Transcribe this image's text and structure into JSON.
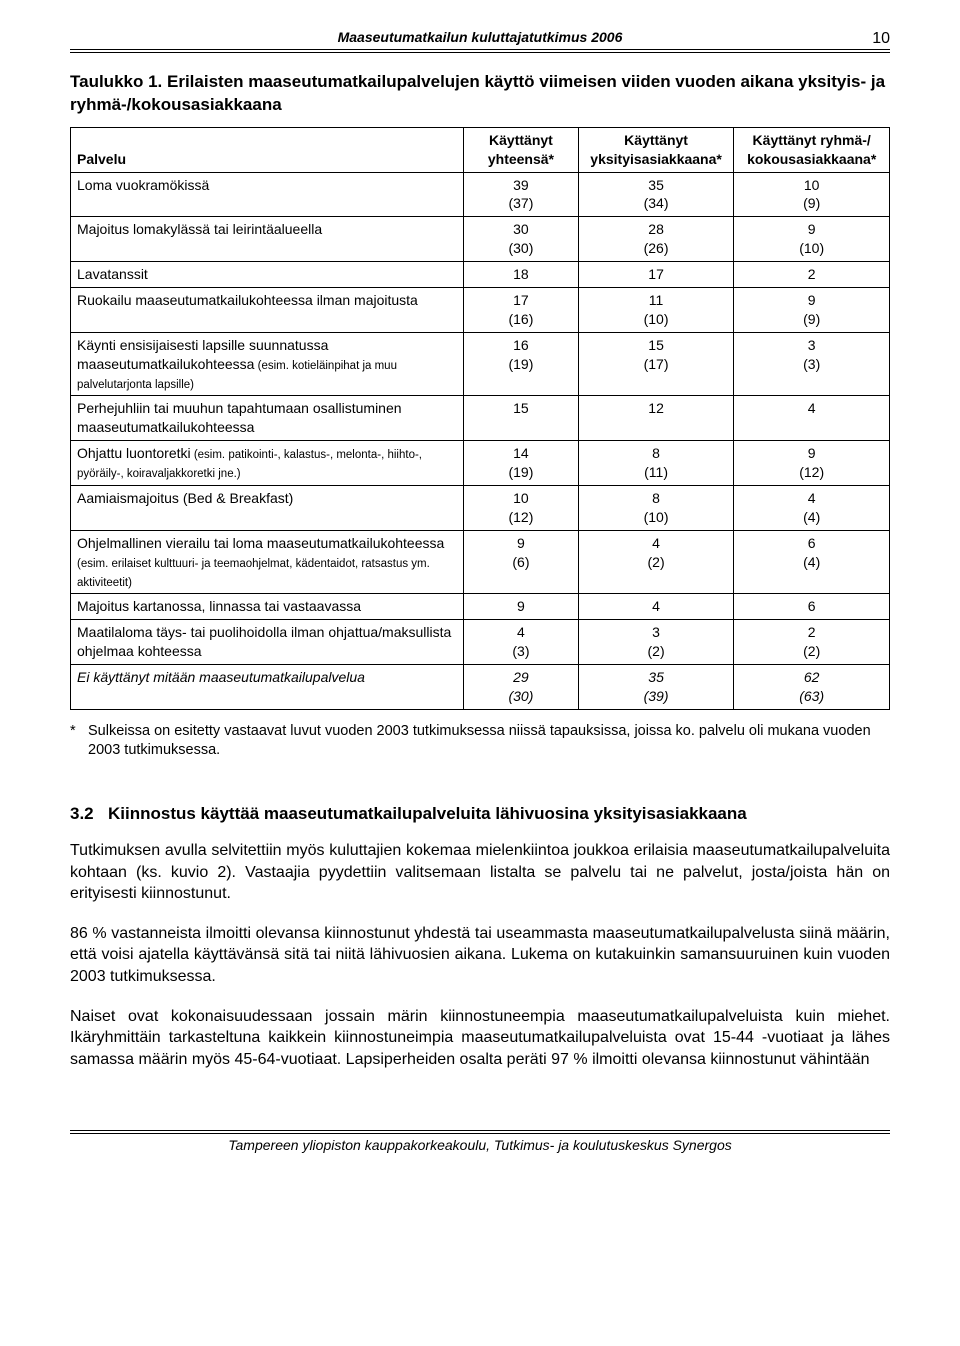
{
  "header": {
    "running_title": "Maaseutumatkailun kuluttajatutkimus 2006",
    "page_number": "10"
  },
  "table": {
    "caption_label": "Taulukko 1.",
    "caption_text": "Erilaisten maaseutumatkailupalvelujen käyttö viimeisen viiden vuoden aikana yksityis- ja ryhmä-/kokousasiakkaana",
    "columns": {
      "c0": "Palvelu",
      "c1": "Käyttänyt yhteensä*",
      "c2": "Käyttänyt yksityisasiakkaana*",
      "c3": "Käyttänyt ryhmä-/ kokousasiakkaana*"
    },
    "rows": [
      {
        "label_main": "Loma vuokramökissä",
        "label_small": "",
        "c1": "39\n(37)",
        "c2": "35\n(34)",
        "c3": "10\n(9)"
      },
      {
        "label_main": "Majoitus lomakylässä tai leirintäalueella",
        "label_small": "",
        "c1": "30\n(30)",
        "c2": "28\n(26)",
        "c3": "9\n(10)"
      },
      {
        "label_main": "Lavatanssit",
        "label_small": "",
        "c1": "18",
        "c2": "17",
        "c3": "2"
      },
      {
        "label_main": "Ruokailu maaseutumatkailukohteessa ilman majoitusta",
        "label_small": "",
        "c1": "17\n(16)",
        "c2": "11\n(10)",
        "c3": "9\n(9)"
      },
      {
        "label_main": "Käynti ensisijaisesti lapsille suunnatussa maaseutumatkailukohteessa",
        "label_small": " (esim. kotieläinpihat ja muu palvelutarjonta lapsille)",
        "c1": "16\n(19)",
        "c2": "15\n(17)",
        "c3": "3\n(3)"
      },
      {
        "label_main": "Perhejuhliin tai muuhun tapahtumaan osallistuminen maaseutumatkailukohteessa",
        "label_small": "",
        "c1": "15",
        "c2": "12",
        "c3": "4"
      },
      {
        "label_main": "Ohjattu luontoretki",
        "label_small": " (esim. patikointi-, kalastus-, melonta-, hiihto-, pyöräily-, koiravaljakkoretki jne.)",
        "c1": "14\n(19)",
        "c2": "8\n(11)",
        "c3": "9\n(12)"
      },
      {
        "label_main": "Aamiaismajoitus (Bed & Breakfast)",
        "label_small": "",
        "c1": "10\n(12)",
        "c2": "8\n(10)",
        "c3": "4\n(4)"
      },
      {
        "label_main": "Ohjelmallinen vierailu tai loma maaseutumatkailukohteessa",
        "label_small": " (esim. erilaiset kulttuuri- ja teemaohjelmat, kädentaidot, ratsastus ym. aktiviteetit)",
        "c1": "9\n(6)",
        "c2": "4\n(2)",
        "c3": "6\n(4)"
      },
      {
        "label_main": "Majoitus kartanossa, linnassa tai vastaavassa",
        "label_small": "",
        "c1": "9",
        "c2": "4",
        "c3": "6"
      },
      {
        "label_main": "Maatilaloma täys- tai puolihoidolla ilman ohjattua/maksullista ohjelmaa kohteessa",
        "label_small": "",
        "c1": "4\n(3)",
        "c2": "3\n(2)",
        "c3": "2\n(2)"
      },
      {
        "label_main_italic": "Ei käyttänyt mitään maaseutumatkailupalvelua",
        "label_small": "",
        "c1_italic": "29\n(30)",
        "c2_italic": "35\n(39)",
        "c3_italic": "62\n(63)"
      }
    ],
    "footnote": "Sulkeissa on esitetty vastaavat luvut vuoden 2003 tutkimuksessa niissä tapauksissa, joissa ko. palvelu oli mukana vuoden 2003 tutkimuksessa."
  },
  "section": {
    "number": "3.2",
    "title": "Kiinnostus käyttää maaseutumatkailupalveluita lähivuosina yksityisasiakkaana",
    "paragraphs": [
      "Tutkimuksen avulla selvitettiin myös kuluttajien kokemaa mielenkiintoa joukkoa erilaisia maaseutumatkailupalveluita kohtaan (ks. kuvio 2). Vastaajia pyydettiin valitsemaan listalta se palvelu tai ne palvelut, josta/joista hän on erityisesti kiinnostunut.",
      "86 % vastanneista ilmoitti olevansa kiinnostunut yhdestä tai useammasta maaseutumatkailupalvelusta siinä määrin, että voisi ajatella käyttävänsä sitä tai niitä lähivuosien aikana. Lukema on kutakuinkin samansuuruinen kuin vuoden 2003 tutkimuksessa.",
      "Naiset ovat kokonaisuudessaan jossain märin kiinnostuneempia maaseutumatkailu­palveluista kuin miehet. Ikäryhmittäin tarkasteltuna kaikkein kiinnostuneimpia maaseutumatkailupalveluista ovat 15-44 -vuotiaat ja lähes samassa määrin myös 45-64-vuotiaat. Lapsiperheiden osalta peräti 97 % ilmoitti olevansa kiinnostunut vähintään"
    ]
  },
  "footer": {
    "text": "Tampereen yliopiston kauppakorkeakoulu, Tutkimus- ja koulutuskeskus Synergos"
  }
}
